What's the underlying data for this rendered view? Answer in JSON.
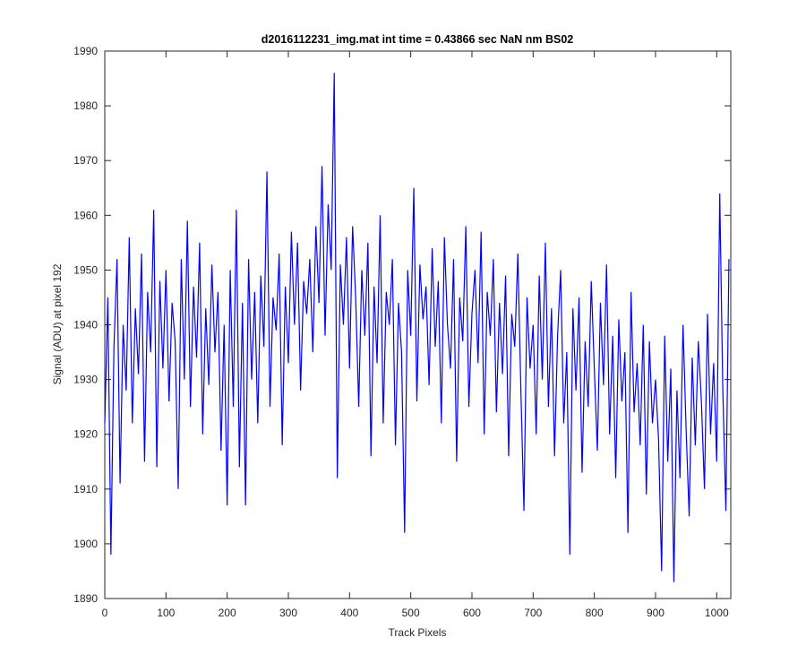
{
  "chart_data": {
    "type": "line",
    "title": "d2016112231_img.mat int time = 0.43866 sec  NaN nm BS02",
    "xlabel": "Track Pixels",
    "ylabel": "Signal (ADU) at pixel 192",
    "x": [
      0,
      5,
      10,
      15,
      20,
      25,
      30,
      35,
      40,
      45,
      50,
      55,
      60,
      65,
      70,
      75,
      80,
      85,
      90,
      95,
      100,
      105,
      110,
      115,
      120,
      125,
      130,
      135,
      140,
      145,
      150,
      155,
      160,
      165,
      170,
      175,
      180,
      185,
      190,
      195,
      200,
      205,
      210,
      215,
      220,
      225,
      230,
      235,
      240,
      245,
      250,
      255,
      260,
      265,
      270,
      275,
      280,
      285,
      290,
      295,
      300,
      305,
      310,
      315,
      320,
      325,
      330,
      335,
      340,
      345,
      350,
      355,
      360,
      365,
      370,
      375,
      380,
      385,
      390,
      395,
      400,
      405,
      410,
      415,
      420,
      425,
      430,
      435,
      440,
      445,
      450,
      455,
      460,
      465,
      470,
      475,
      480,
      485,
      490,
      495,
      500,
      505,
      510,
      515,
      520,
      525,
      530,
      535,
      540,
      545,
      550,
      555,
      560,
      565,
      570,
      575,
      580,
      585,
      590,
      595,
      600,
      605,
      610,
      615,
      620,
      625,
      630,
      635,
      640,
      645,
      650,
      655,
      660,
      665,
      670,
      675,
      680,
      685,
      690,
      695,
      700,
      705,
      710,
      715,
      720,
      725,
      730,
      735,
      740,
      745,
      750,
      755,
      760,
      765,
      770,
      775,
      780,
      785,
      790,
      795,
      800,
      805,
      810,
      815,
      820,
      825,
      830,
      835,
      840,
      845,
      850,
      855,
      860,
      865,
      870,
      875,
      880,
      885,
      890,
      895,
      900,
      905,
      910,
      915,
      920,
      925,
      930,
      935,
      940,
      945,
      950,
      955,
      960,
      965,
      970,
      975,
      980,
      985,
      990,
      995,
      1000,
      1005,
      1010,
      1015,
      1020
    ],
    "series": [
      {
        "name": "pixel 192",
        "color": "#0000ff",
        "values": [
          1922,
          1945,
          1898,
          1936,
          1952,
          1911,
          1940,
          1928,
          1956,
          1922,
          1943,
          1931,
          1953,
          1915,
          1946,
          1935,
          1961,
          1914,
          1948,
          1932,
          1950,
          1926,
          1944,
          1937,
          1910,
          1952,
          1930,
          1959,
          1925,
          1947,
          1934,
          1955,
          1920,
          1943,
          1929,
          1951,
          1935,
          1946,
          1917,
          1940,
          1907,
          1950,
          1925,
          1961,
          1914,
          1944,
          1907,
          1952,
          1930,
          1946,
          1922,
          1949,
          1936,
          1968,
          1925,
          1945,
          1939,
          1953,
          1918,
          1947,
          1933,
          1957,
          1940,
          1955,
          1928,
          1948,
          1942,
          1952,
          1935,
          1958,
          1944,
          1969,
          1938,
          1962,
          1950,
          1986,
          1912,
          1951,
          1940,
          1956,
          1932,
          1958,
          1945,
          1925,
          1950,
          1938,
          1955,
          1916,
          1947,
          1933,
          1960,
          1922,
          1946,
          1940,
          1952,
          1918,
          1944,
          1935,
          1902,
          1950,
          1938,
          1965,
          1926,
          1951,
          1941,
          1947,
          1929,
          1954,
          1936,
          1948,
          1922,
          1956,
          1940,
          1932,
          1952,
          1915,
          1945,
          1937,
          1958,
          1925,
          1942,
          1950,
          1933,
          1957,
          1920,
          1946,
          1938,
          1952,
          1924,
          1944,
          1931,
          1949,
          1916,
          1942,
          1936,
          1953,
          1928,
          1906,
          1945,
          1932,
          1940,
          1920,
          1949,
          1930,
          1955,
          1925,
          1943,
          1916,
          1938,
          1950,
          1922,
          1935,
          1898,
          1943,
          1928,
          1945,
          1913,
          1937,
          1925,
          1948,
          1932,
          1917,
          1944,
          1929,
          1951,
          1920,
          1938,
          1912,
          1941,
          1926,
          1935,
          1902,
          1946,
          1924,
          1933,
          1918,
          1940,
          1909,
          1937,
          1922,
          1930,
          1919,
          1895,
          1938,
          1915,
          1932,
          1893,
          1928,
          1912,
          1940,
          1921,
          1905,
          1934,
          1918,
          1937,
          1926,
          1910,
          1942,
          1920,
          1933,
          1915,
          1964,
          1928,
          1906,
          1952
        ]
      }
    ],
    "xlim": [
      0,
      1023
    ],
    "xticks": [
      0,
      100,
      200,
      300,
      400,
      500,
      600,
      700,
      800,
      900,
      1000
    ],
    "ylim": [
      1890,
      1990
    ],
    "yticks": [
      1890,
      1900,
      1910,
      1920,
      1930,
      1940,
      1950,
      1960,
      1970,
      1980,
      1990
    ]
  }
}
